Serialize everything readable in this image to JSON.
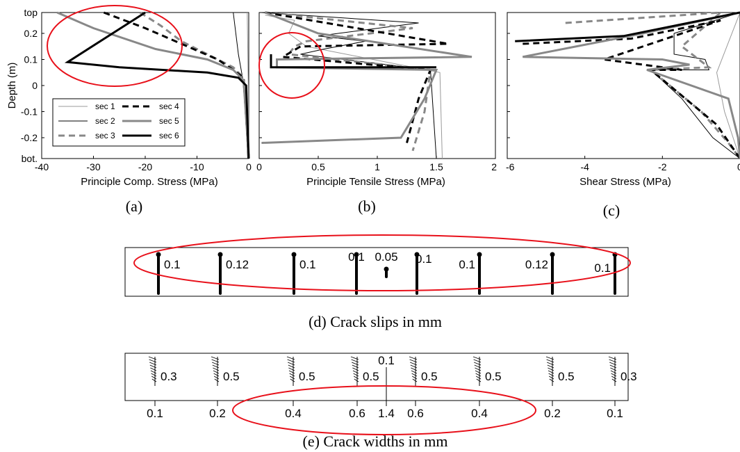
{
  "chart_data": [
    {
      "type": "line",
      "panel": "a",
      "caption": "(a)",
      "xlabel": "Principle Comp. Stress (MPa)",
      "ylabel": "Depth (m)",
      "xlim": [
        -40,
        0
      ],
      "ylim": [
        -0.28,
        0.28
      ],
      "xticks": [
        "-40",
        "-30",
        "-20",
        "-10",
        "0"
      ],
      "yticks": [
        "top",
        "0.2",
        "0.1",
        "0",
        "-0.1",
        "-0.2",
        "bot."
      ],
      "legend": {
        "placement": "bottom-left",
        "entries": [
          "sec 1",
          "sec 2",
          "sec 3",
          "sec 4",
          "sec 5",
          "sec 6"
        ]
      },
      "series": [
        {
          "name": "sec 1",
          "points": [
            [
              -0.3,
              0.28
            ],
            [
              -0.1,
              0.0
            ],
            [
              0,
              -0.28
            ]
          ]
        },
        {
          "name": "sec 2",
          "points": [
            [
              -3,
              0.28
            ],
            [
              -2.5,
              0.2
            ],
            [
              -2,
              0.12
            ],
            [
              -1.2,
              0.03
            ],
            [
              -0.6,
              -0.1
            ],
            [
              -0.2,
              -0.28
            ]
          ]
        },
        {
          "name": "sec 3",
          "points": [
            [
              -21,
              0.28
            ],
            [
              -17,
              0.23
            ],
            [
              -13,
              0.17
            ],
            [
              -6,
              0.1
            ],
            [
              -3,
              0.07
            ],
            [
              -1,
              0.03
            ],
            [
              0,
              -0.28
            ]
          ]
        },
        {
          "name": "sec 4",
          "points": [
            [
              -28,
              0.28
            ],
            [
              -20,
              0.22
            ],
            [
              -13,
              0.16
            ],
            [
              -6,
              0.1
            ],
            [
              -3,
              0.06
            ],
            [
              -1,
              0.03
            ],
            [
              0,
              -0.28
            ]
          ]
        },
        {
          "name": "sec 5",
          "points": [
            [
              -37,
              0.28
            ],
            [
              -30,
              0.22
            ],
            [
              -18,
              0.14
            ],
            [
              -8,
              0.1
            ],
            [
              -3,
              0.06
            ],
            [
              -1,
              0.02
            ],
            [
              0,
              -0.28
            ]
          ]
        },
        {
          "name": "sec 6",
          "points": [
            [
              -20,
              0.28
            ],
            [
              -35,
              0.09
            ],
            [
              -25,
              0.07
            ],
            [
              -8,
              0.05
            ],
            [
              -2,
              0.03
            ],
            [
              -0.5,
              0.0
            ],
            [
              0,
              -0.28
            ]
          ]
        }
      ]
    },
    {
      "type": "line",
      "panel": "b",
      "caption": "(b)",
      "xlabel": "Principle Tensile Stress (MPa)",
      "xlim": [
        0,
        2
      ],
      "ylim": [
        -0.28,
        0.28
      ],
      "xticks": [
        "0",
        "0.5",
        "1",
        "1.5",
        "2"
      ],
      "series": [
        {
          "name": "sec 1",
          "points": [
            [
              0.05,
              0.27
            ],
            [
              0.3,
              0.25
            ],
            [
              0.25,
              0.2
            ],
            [
              0.4,
              0.15
            ],
            [
              1.53,
              0.05
            ],
            [
              1.55,
              -0.28
            ]
          ]
        },
        {
          "name": "sec 2",
          "points": [
            [
              0.02,
              0.28
            ],
            [
              1.35,
              0.24
            ],
            [
              0.5,
              0.19
            ],
            [
              0.9,
              0.17
            ],
            [
              0.55,
              0.14
            ],
            [
              0.35,
              0.12
            ],
            [
              1.45,
              0.06
            ],
            [
              1.5,
              -0.28
            ]
          ]
        },
        {
          "name": "sec 3",
          "points": [
            [
              0.05,
              0.28
            ],
            [
              1.3,
              0.22
            ],
            [
              0.4,
              0.17
            ],
            [
              0.3,
              0.15
            ],
            [
              0.25,
              0.12
            ],
            [
              1.45,
              0.06
            ],
            [
              1.4,
              -0.1
            ],
            [
              1.3,
              -0.25
            ]
          ]
        },
        {
          "name": "sec 4",
          "points": [
            [
              0.05,
              0.28
            ],
            [
              1.6,
              0.16
            ],
            [
              0.35,
              0.15
            ],
            [
              0.2,
              0.11
            ],
            [
              1.45,
              0.06
            ],
            [
              1.35,
              -0.05
            ],
            [
              1.25,
              -0.22
            ]
          ]
        },
        {
          "name": "sec 5",
          "points": [
            [
              0.05,
              0.28
            ],
            [
              0.5,
              0.2
            ],
            [
              1.8,
              0.11
            ],
            [
              0.15,
              0.1
            ],
            [
              0.15,
              0.07
            ],
            [
              1.5,
              0.06
            ],
            [
              1.4,
              -0.05
            ],
            [
              1.2,
              -0.2
            ],
            [
              0.02,
              -0.22
            ]
          ]
        },
        {
          "name": "sec 6",
          "points": [
            [
              0.1,
              0.12
            ],
            [
              0.1,
              0.07
            ],
            [
              1.5,
              0.07
            ]
          ]
        }
      ]
    },
    {
      "type": "line",
      "panel": "c",
      "caption": "(c)",
      "xlabel": "Shear Stress (MPa)",
      "xlim": [
        -6,
        0
      ],
      "ylim": [
        -0.28,
        0.28
      ],
      "xticks": [
        "-6",
        "-4",
        "-2",
        "0"
      ],
      "series": [
        {
          "name": "sec 1",
          "points": [
            [
              0,
              0.28
            ],
            [
              -0.6,
              0.05
            ],
            [
              -0.4,
              -0.1
            ],
            [
              0,
              -0.28
            ]
          ]
        },
        {
          "name": "sec 2",
          "points": [
            [
              0,
              0.28
            ],
            [
              -1.7,
              0.2
            ],
            [
              -1.7,
              0.12
            ],
            [
              -0.9,
              0.1
            ],
            [
              -0.8,
              0.06
            ],
            [
              -2.3,
              0.06
            ],
            [
              -1.5,
              -0.05
            ],
            [
              -0.7,
              -0.2
            ],
            [
              0,
              -0.28
            ]
          ]
        },
        {
          "name": "sec 3",
          "points": [
            [
              -4.5,
              0.24
            ],
            [
              -0.5,
              0.28
            ],
            [
              -1.5,
              0.15
            ],
            [
              -0.8,
              0.07
            ],
            [
              -2.3,
              0.06
            ],
            [
              -1.0,
              -0.1
            ],
            [
              -0.3,
              -0.22
            ],
            [
              0,
              -0.28
            ]
          ]
        },
        {
          "name": "sec 4",
          "points": [
            [
              -5.6,
              0.16
            ],
            [
              -2.8,
              0.18
            ],
            [
              -0.5,
              0.25
            ],
            [
              -3.5,
              0.1
            ],
            [
              -1.5,
              0.06
            ],
            [
              -2.3,
              0.06
            ],
            [
              -0.6,
              -0.15
            ],
            [
              0,
              -0.28
            ]
          ]
        },
        {
          "name": "sec 5",
          "points": [
            [
              0,
              0.28
            ],
            [
              -2.5,
              0.2
            ],
            [
              -5.6,
              0.11
            ],
            [
              -2.0,
              0.1
            ],
            [
              -1.3,
              0.08
            ],
            [
              -2.4,
              0.06
            ],
            [
              -0.3,
              -0.05
            ],
            [
              -0.05,
              -0.2
            ],
            [
              0,
              -0.28
            ]
          ]
        },
        {
          "name": "sec 6",
          "points": [
            [
              -5.8,
              0.17
            ],
            [
              -3,
              0.19
            ],
            [
              0,
              0.28
            ]
          ]
        }
      ]
    }
  ],
  "crack_slips": {
    "caption": "(d) Crack slips in mm",
    "labels": [
      "0.1",
      "0.12",
      "0.1",
      "0.1",
      "0.05",
      "0.1",
      "0.1",
      "0.12",
      "0.1"
    ]
  },
  "crack_widths": {
    "caption": "(e) Crack widths in mm",
    "top_labels": [
      "0.3",
      "0.5",
      "0.5",
      "0.5",
      "0.1",
      "0.5",
      "0.5",
      "0.5",
      "0.3"
    ],
    "bottom_labels": [
      "0.1",
      "0.2",
      "0.4",
      "0.6",
      "1.4",
      "0.6",
      "0.4",
      "0.2",
      "0.1"
    ]
  },
  "colors": {
    "highlight": "#e8101a",
    "gray": "#888888",
    "black": "#000000"
  }
}
